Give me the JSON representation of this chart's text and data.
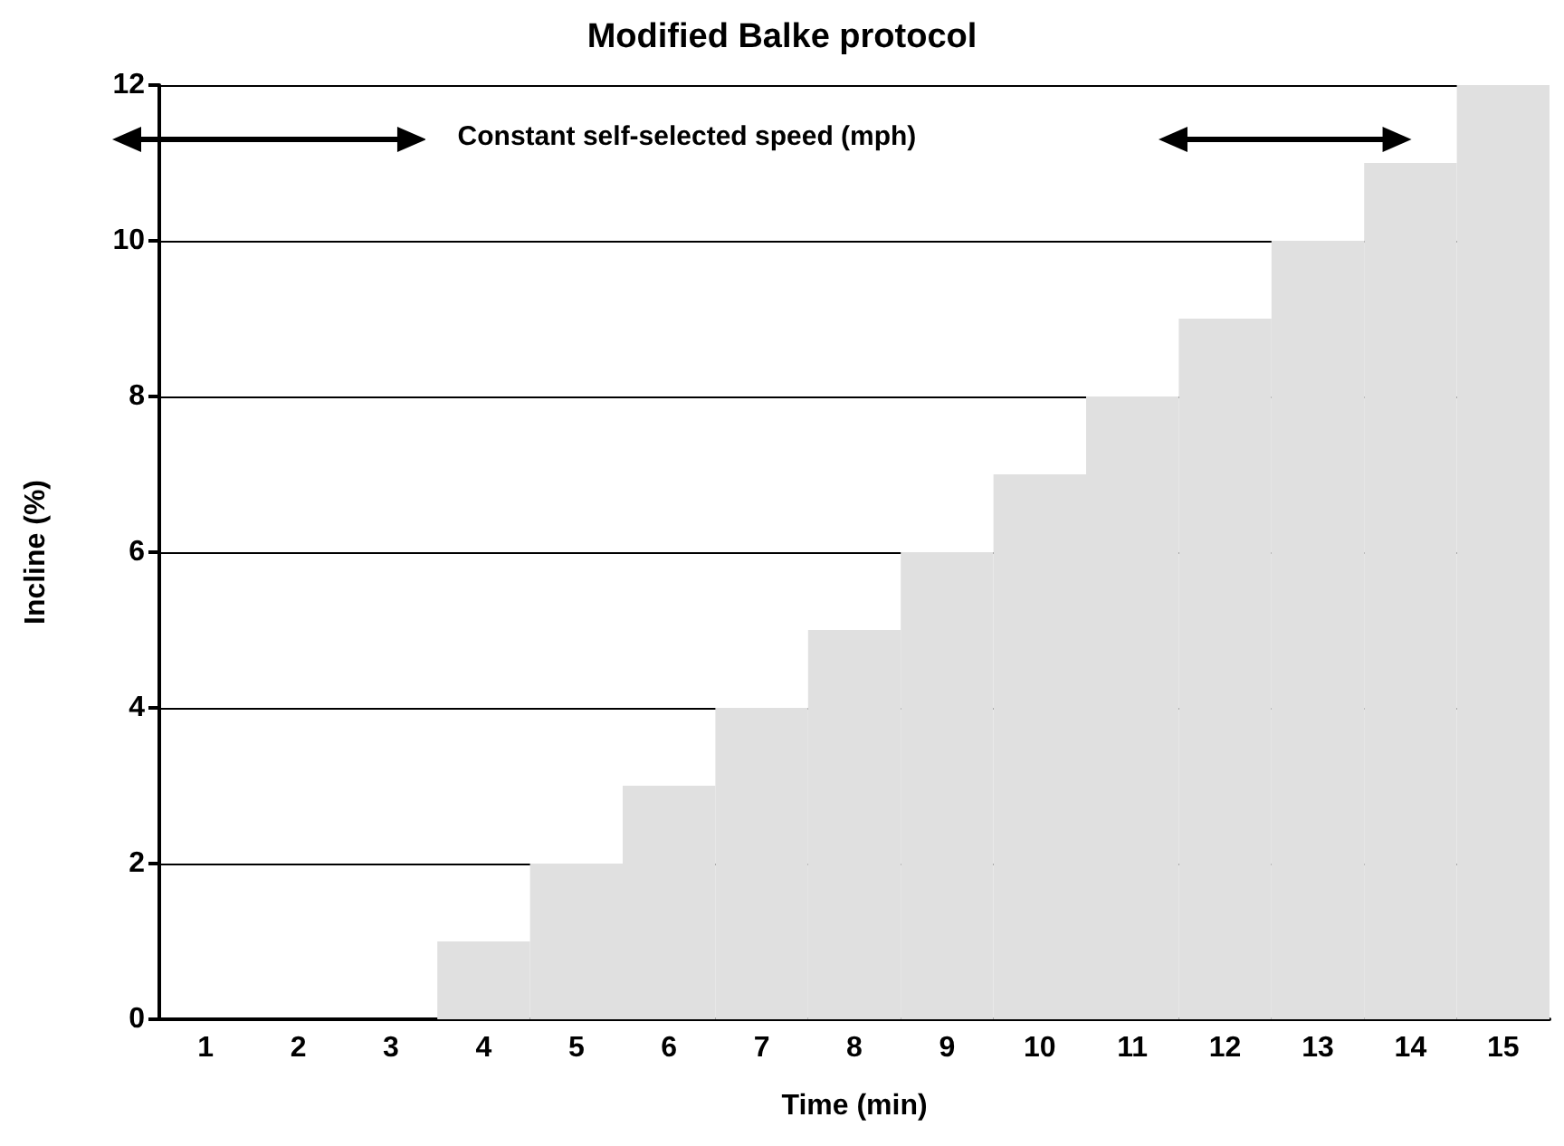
{
  "chart_data": {
    "type": "bar",
    "title": "Modified Balke protocol",
    "xlabel": "Time (min)",
    "ylabel": "Incline (%)",
    "categories": [
      "1",
      "2",
      "3",
      "4",
      "5",
      "6",
      "7",
      "8",
      "9",
      "10",
      "11",
      "12",
      "13",
      "14",
      "15"
    ],
    "values": [
      0,
      0,
      0,
      1,
      2,
      3,
      4,
      5,
      6,
      7,
      8,
      9,
      10,
      11,
      12
    ],
    "color": "#e0e0e0",
    "ylim": [
      0,
      12
    ],
    "yticks": [
      0,
      2,
      4,
      6,
      8,
      10,
      12
    ],
    "grid": "y",
    "annotations": [
      "Constant self-selected speed (mph)"
    ]
  }
}
